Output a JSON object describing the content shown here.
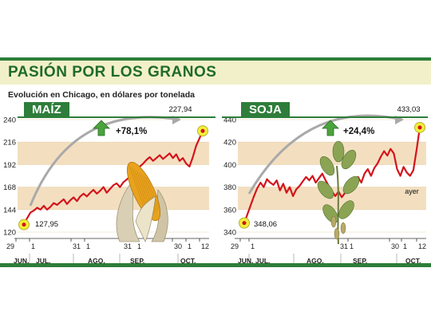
{
  "header": {
    "title": "PASIÓN POR LOS GRANOS",
    "subtitle": "Evolución en Chicago, en dólares por tonelada"
  },
  "colors": {
    "brand_green": "#2e7d3a",
    "line_red": "#d3141c",
    "band_tan": "#f3dfc0",
    "marker_yellow": "#f3ef3a",
    "arrow_green": "#4aa33c"
  },
  "chart_data": [
    {
      "type": "line",
      "title": "MAÍZ",
      "ylim": [
        120,
        240
      ],
      "yticks": [
        120,
        144,
        168,
        192,
        216,
        240
      ],
      "xticks": [
        "29",
        "1",
        "31",
        "1",
        "31",
        "1",
        "30",
        "1",
        "12"
      ],
      "months": [
        "JUN.",
        "JUL.",
        "AGO.",
        "SEP.",
        "OCT."
      ],
      "start_label": "127,95",
      "end_label": "227,94",
      "change_label": "+78,1%",
      "values": [
        127.95,
        135,
        141,
        143,
        146,
        144,
        148,
        144,
        147,
        151,
        149,
        152,
        155,
        150,
        154,
        157,
        153,
        158,
        161,
        158,
        162,
        165,
        161,
        164,
        168,
        162,
        166,
        170,
        172,
        168,
        173,
        176,
        179,
        183,
        186,
        190,
        193,
        197,
        200,
        196,
        199,
        202,
        198,
        201,
        204,
        199,
        203,
        196,
        199,
        193,
        190,
        200,
        212,
        220,
        227.94
      ]
    },
    {
      "type": "line",
      "title": "SOJA",
      "ylim": [
        340,
        440
      ],
      "yticks": [
        340,
        360,
        380,
        400,
        420,
        440
      ],
      "xticks": [
        "29",
        "1",
        "31",
        "1",
        "30",
        "1",
        "12"
      ],
      "months": [
        "JUN.",
        "JUL.",
        "AGO.",
        "SEP.",
        "OCT."
      ],
      "start_label": "348,06",
      "end_label": "433,03",
      "change_label": "+24,4%",
      "annotation": "ayer",
      "values": [
        348.06,
        356,
        364,
        372,
        379,
        384,
        380,
        387,
        384,
        382,
        386,
        377,
        383,
        375,
        380,
        372,
        378,
        381,
        385,
        389,
        386,
        390,
        384,
        388,
        392,
        386,
        381,
        376,
        372,
        376,
        371,
        375,
        379,
        385,
        381,
        389,
        384,
        392,
        396,
        390,
        397,
        401,
        407,
        412,
        408,
        414,
        410,
        396,
        390,
        398,
        393,
        390,
        395,
        413,
        433.03
      ]
    }
  ]
}
